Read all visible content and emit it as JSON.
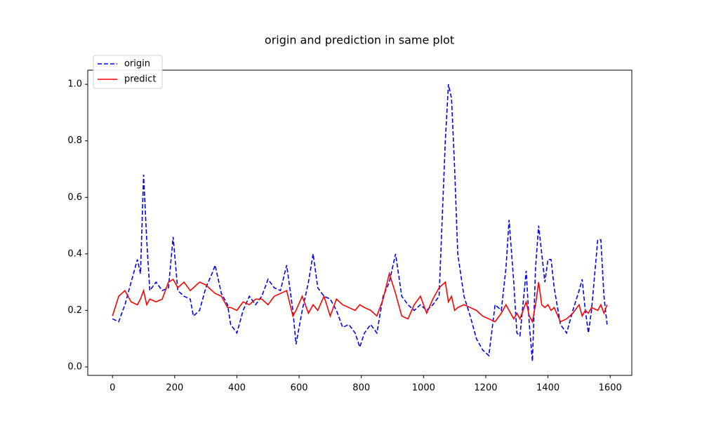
{
  "chart_data": {
    "type": "line",
    "title": "origin and prediction in same plot",
    "x": [
      0,
      20,
      40,
      60,
      80,
      90,
      100,
      110,
      120,
      140,
      160,
      180,
      195,
      210,
      230,
      250,
      260,
      280,
      300,
      320,
      330,
      350,
      370,
      380,
      400,
      420,
      440,
      460,
      480,
      500,
      520,
      540,
      560,
      580,
      590,
      610,
      630,
      645,
      660,
      680,
      700,
      720,
      740,
      760,
      780,
      795,
      810,
      830,
      850,
      870,
      890,
      910,
      930,
      950,
      970,
      990,
      1010,
      1030,
      1050,
      1070,
      1080,
      1090,
      1100,
      1110,
      1130,
      1150,
      1170,
      1190,
      1210,
      1230,
      1250,
      1265,
      1275,
      1290,
      1300,
      1310,
      1330,
      1340,
      1350,
      1360,
      1370,
      1380,
      1390,
      1400,
      1410,
      1420,
      1440,
      1460,
      1480,
      1500,
      1510,
      1520,
      1530,
      1540,
      1560,
      1570,
      1580,
      1590
    ],
    "series": [
      {
        "name": "origin",
        "color": "#0000ff",
        "linestyle": "dashed",
        "values": [
          0.17,
          0.16,
          0.22,
          0.3,
          0.38,
          0.33,
          0.68,
          0.45,
          0.27,
          0.3,
          0.27,
          0.28,
          0.46,
          0.27,
          0.25,
          0.24,
          0.18,
          0.2,
          0.28,
          0.33,
          0.36,
          0.26,
          0.22,
          0.15,
          0.12,
          0.2,
          0.25,
          0.22,
          0.25,
          0.31,
          0.28,
          0.27,
          0.36,
          0.2,
          0.08,
          0.2,
          0.3,
          0.4,
          0.28,
          0.25,
          0.24,
          0.2,
          0.14,
          0.15,
          0.12,
          0.07,
          0.12,
          0.15,
          0.12,
          0.25,
          0.3,
          0.4,
          0.25,
          0.22,
          0.2,
          0.22,
          0.2,
          0.22,
          0.25,
          0.8,
          1.0,
          0.95,
          0.7,
          0.4,
          0.25,
          0.18,
          0.1,
          0.06,
          0.04,
          0.22,
          0.2,
          0.35,
          0.52,
          0.3,
          0.12,
          0.11,
          0.34,
          0.15,
          0.02,
          0.35,
          0.5,
          0.4,
          0.3,
          0.38,
          0.38,
          0.28,
          0.15,
          0.12,
          0.2,
          0.27,
          0.31,
          0.2,
          0.12,
          0.2,
          0.45,
          0.45,
          0.25,
          0.15
        ]
      },
      {
        "name": "predict",
        "color": "#ff0000",
        "linestyle": "solid",
        "values": [
          0.18,
          0.25,
          0.27,
          0.23,
          0.22,
          0.24,
          0.27,
          0.22,
          0.24,
          0.23,
          0.24,
          0.3,
          0.31,
          0.28,
          0.3,
          0.27,
          0.28,
          0.3,
          0.29,
          0.27,
          0.26,
          0.25,
          0.21,
          0.21,
          0.2,
          0.23,
          0.22,
          0.24,
          0.24,
          0.22,
          0.25,
          0.26,
          0.27,
          0.18,
          0.2,
          0.25,
          0.19,
          0.22,
          0.2,
          0.25,
          0.18,
          0.24,
          0.22,
          0.21,
          0.2,
          0.22,
          0.21,
          0.2,
          0.18,
          0.24,
          0.33,
          0.26,
          0.18,
          0.17,
          0.22,
          0.25,
          0.19,
          0.24,
          0.28,
          0.3,
          0.23,
          0.25,
          0.2,
          0.21,
          0.22,
          0.21,
          0.2,
          0.18,
          0.17,
          0.16,
          0.19,
          0.22,
          0.2,
          0.17,
          0.19,
          0.17,
          0.23,
          0.18,
          0.16,
          0.22,
          0.3,
          0.22,
          0.21,
          0.22,
          0.2,
          0.21,
          0.16,
          0.17,
          0.19,
          0.22,
          0.18,
          0.2,
          0.19,
          0.21,
          0.2,
          0.22,
          0.19,
          0.22
        ]
      }
    ],
    "xlim": [
      -79.5,
      1669.5
    ],
    "xticks": [
      0,
      200,
      400,
      600,
      800,
      1000,
      1200,
      1400,
      1600
    ],
    "ylim": [
      -0.03,
      1.05
    ],
    "yticks": [
      {
        "value": 0,
        "label": "0.0"
      },
      0.2,
      0.4,
      0.6,
      0.8,
      {
        "value": 1,
        "label": "1.0"
      }
    ],
    "legend": "upper left"
  }
}
